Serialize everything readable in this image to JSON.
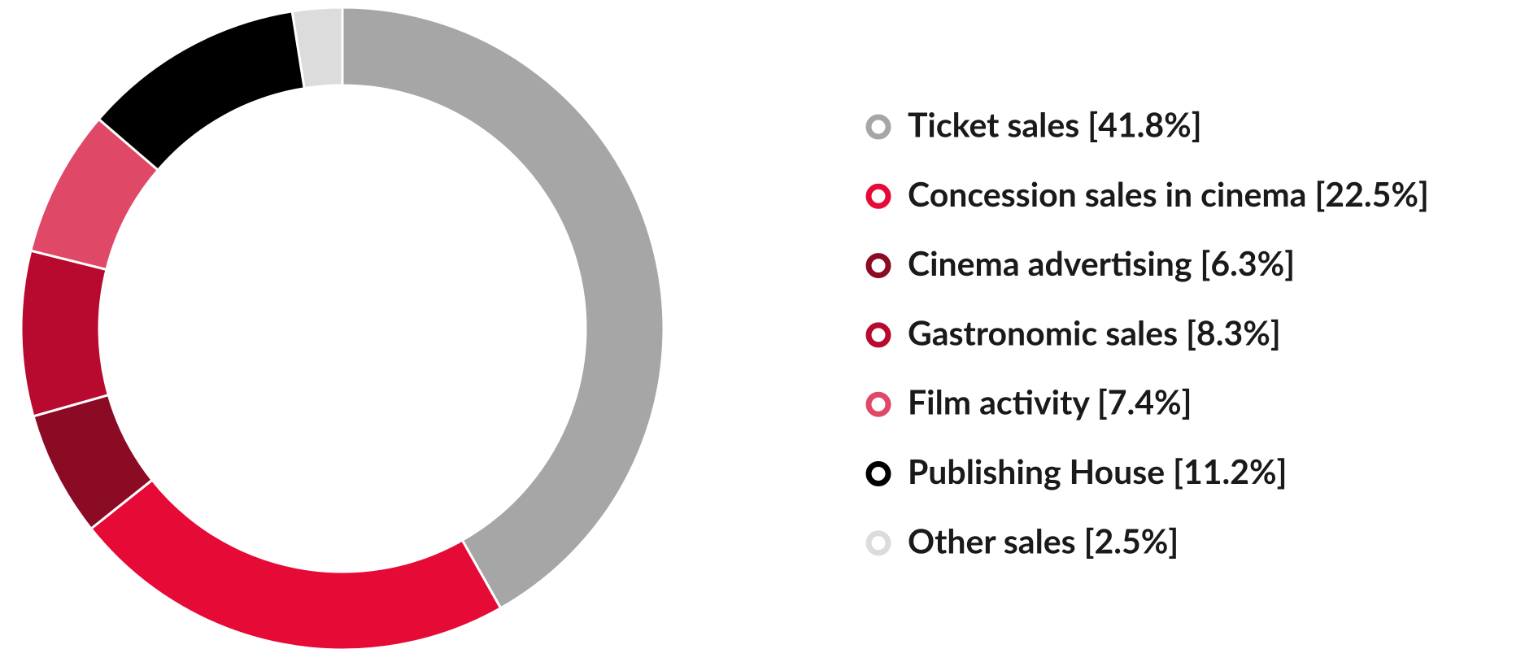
{
  "chart_data": {
    "type": "donut",
    "categories": [
      "Ticket sales [41.8%]",
      "Concession sales in cinema [22.5%]",
      "Cinema advertising [6.3%]",
      "Gastronomic sales [8.3%]",
      "Film activity [7.4%]",
      "Publishing House [11.2%]",
      "Other sales [2.5%]"
    ],
    "values": [
      41.8,
      22.5,
      6.3,
      8.3,
      7.4,
      11.2,
      2.5
    ],
    "colors": [
      "#a6a6a6",
      "#e60a36",
      "#8b0a24",
      "#b8092e",
      "#e04868",
      "#000000",
      "#dcdcdc"
    ],
    "legend": "right"
  }
}
